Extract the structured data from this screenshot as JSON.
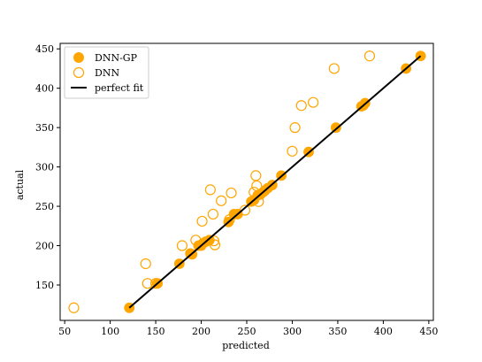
{
  "chart_data": {
    "type": "scatter",
    "xlabel": "predicted",
    "ylabel": "actual",
    "xlim": [
      45,
      455
    ],
    "ylim": [
      105,
      457
    ],
    "xticks": [
      50,
      100,
      150,
      200,
      250,
      300,
      350,
      400,
      450
    ],
    "yticks": [
      150,
      200,
      250,
      300,
      350,
      400,
      450
    ],
    "legend_position": "top-left",
    "grid": false,
    "colors": {
      "accent": "#FFA500",
      "fit_line": "#000000"
    },
    "series": [
      {
        "name": "DNN-GP",
        "style": "filled-circle",
        "points": [
          [
            121,
            121
          ],
          [
            152,
            152
          ],
          [
            176,
            177
          ],
          [
            188,
            190
          ],
          [
            190,
            189
          ],
          [
            197,
            200
          ],
          [
            200,
            200
          ],
          [
            202,
            203
          ],
          [
            205,
            205
          ],
          [
            209,
            207
          ],
          [
            230,
            230
          ],
          [
            236,
            240
          ],
          [
            240,
            240
          ],
          [
            255,
            256
          ],
          [
            258,
            258
          ],
          [
            262,
            264
          ],
          [
            265,
            265
          ],
          [
            268,
            268
          ],
          [
            270,
            270
          ],
          [
            273,
            273
          ],
          [
            278,
            277
          ],
          [
            288,
            289
          ],
          [
            318,
            319
          ],
          [
            348,
            350
          ],
          [
            376,
            377
          ],
          [
            378,
            378
          ],
          [
            380,
            381
          ],
          [
            425,
            425
          ],
          [
            441,
            441
          ]
        ]
      },
      {
        "name": "DNN",
        "style": "hollow-circle",
        "points": [
          [
            60,
            121
          ],
          [
            139,
            177
          ],
          [
            141,
            152
          ],
          [
            150,
            152
          ],
          [
            179,
            200
          ],
          [
            194,
            207
          ],
          [
            201,
            231
          ],
          [
            210,
            271
          ],
          [
            213,
            240
          ],
          [
            214,
            206
          ],
          [
            215,
            201
          ],
          [
            222,
            257
          ],
          [
            231,
            233
          ],
          [
            233,
            267
          ],
          [
            248,
            245
          ],
          [
            258,
            268
          ],
          [
            260,
            289
          ],
          [
            261,
            276
          ],
          [
            263,
            256
          ],
          [
            300,
            320
          ],
          [
            303,
            350
          ],
          [
            310,
            378
          ],
          [
            323,
            382
          ],
          [
            346,
            425
          ],
          [
            385,
            441
          ]
        ]
      },
      {
        "name": "perfect fit",
        "style": "line",
        "points": [
          [
            121,
            121
          ],
          [
            441,
            441
          ]
        ]
      }
    ]
  }
}
